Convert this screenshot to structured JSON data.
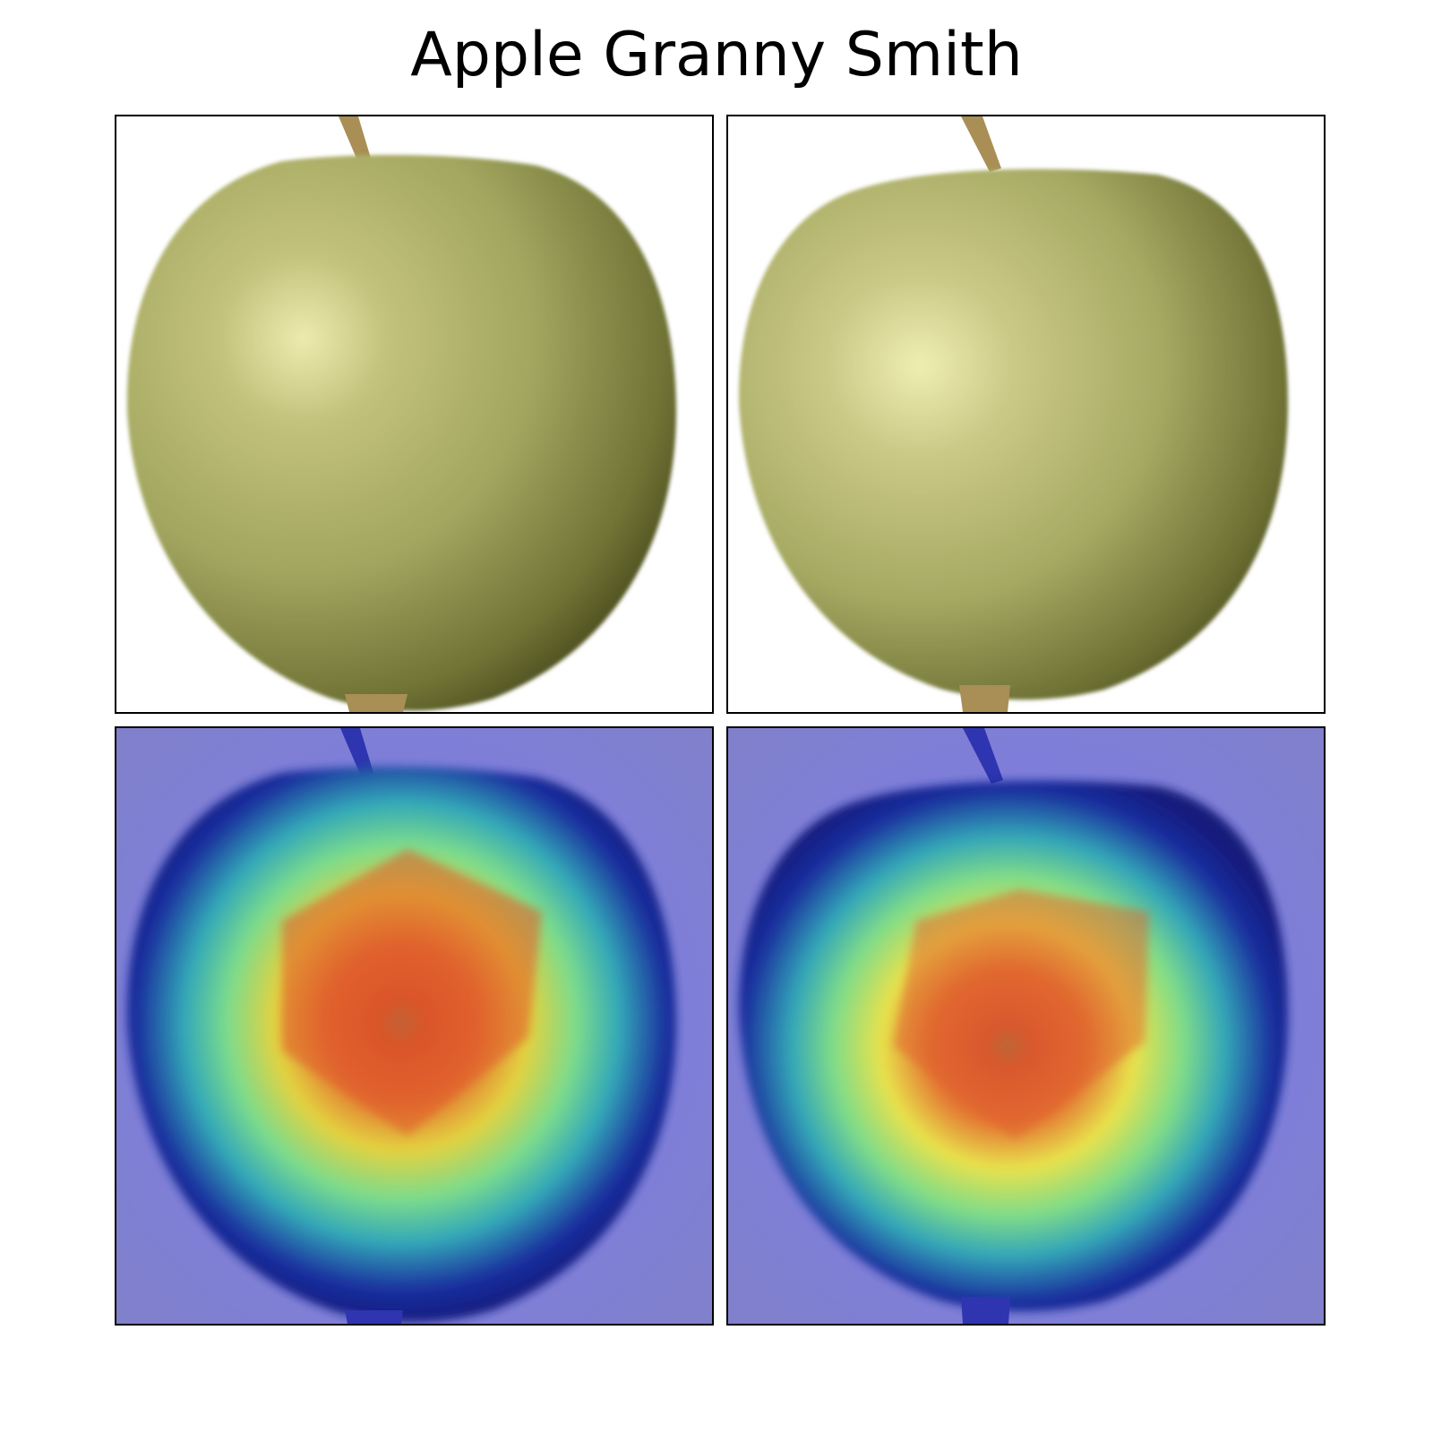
{
  "figure": {
    "title": "Apple Granny Smith"
  },
  "panels": [
    {
      "id": "original-left",
      "kind": "photo"
    },
    {
      "id": "original-right",
      "kind": "photo"
    },
    {
      "id": "heatmap-left",
      "kind": "heatmap-overlay"
    },
    {
      "id": "heatmap-right",
      "kind": "heatmap-overlay"
    }
  ],
  "colors": {
    "apple_light": "#e9e7a6",
    "apple_mid": "#a6aa62",
    "apple_dark": "#3e3f16",
    "stem": "#a98f55",
    "heat_background": "#7f7fd0",
    "heat_ring_blue": "#2a2fb0",
    "heat_cyan": "#43c8c0",
    "heat_yellow": "#e6e84a",
    "heat_red": "#e0452a"
  }
}
